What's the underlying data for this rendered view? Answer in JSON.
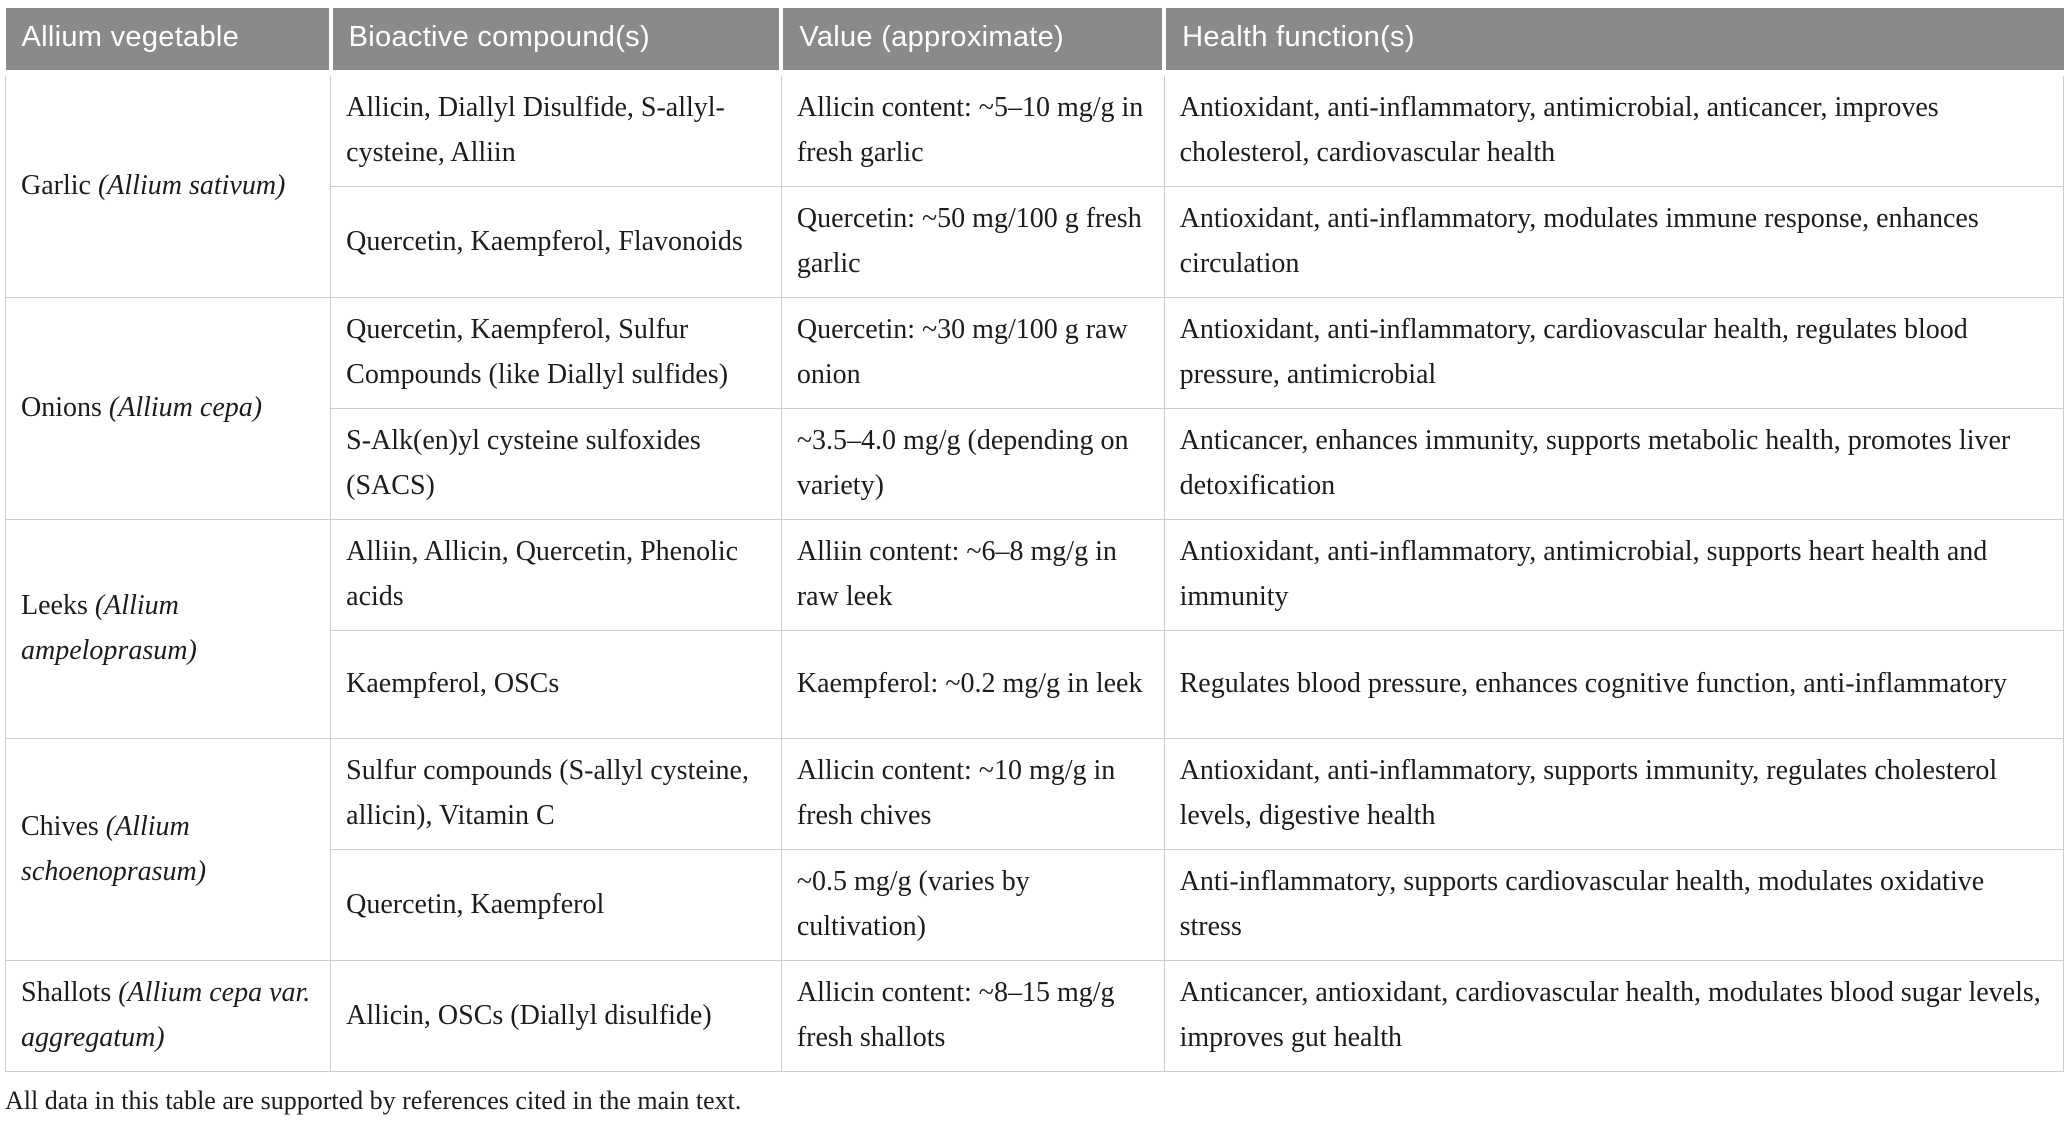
{
  "table": {
    "columns": [
      "Allium vegetable",
      "Bioactive compound(s)",
      "Value (approximate)",
      "Health function(s)"
    ],
    "groups": [
      {
        "vegetable": {
          "name": "Garlic",
          "species": "(Allium sativum)"
        },
        "rows": [
          {
            "compounds": "Allicin, Diallyl Disulfide, S-allyl-cysteine, Alliin",
            "value": "Allicin content: ~5–10 mg/g in fresh garlic",
            "functions": "Antioxidant, anti-inflammatory, antimicrobial, anticancer, improves cholesterol, cardiovascular health"
          },
          {
            "compounds": "Quercetin, Kaempferol, Flavonoids",
            "value": "Quercetin: ~50 mg/100 g fresh garlic",
            "functions": "Antioxidant, anti-inflammatory, modulates immune response, enhances circulation"
          }
        ]
      },
      {
        "vegetable": {
          "name": "Onions",
          "species": "(Allium cepa)"
        },
        "rows": [
          {
            "compounds": "Quercetin, Kaempferol, Sulfur Compounds (like Diallyl sulfides)",
            "value": "Quercetin: ~30 mg/100 g raw onion",
            "functions": "Antioxidant, anti-inflammatory, cardiovascular health, regulates blood pressure, antimicrobial"
          },
          {
            "compounds": "S-Alk(en)yl cysteine sulfoxides (SACS)",
            "value": "~3.5–4.0 mg/g (depending on variety)",
            "functions": "Anticancer, enhances immunity, supports metabolic health, promotes liver detoxification"
          }
        ]
      },
      {
        "vegetable": {
          "name": "Leeks",
          "species": "(Allium ampeloprasum)"
        },
        "rows": [
          {
            "compounds": "Alliin, Allicin, Quercetin, Phenolic acids",
            "value": "Alliin content: ~6–8 mg/g in raw leek",
            "functions": "Antioxidant, anti-inflammatory, antimicrobial, supports heart health and immunity"
          },
          {
            "compounds": "Kaempferol, OSCs",
            "value": "Kaempferol: ~0.2 mg/g in leek",
            "functions": "Regulates blood pressure, enhances cognitive function, anti-inflammatory"
          }
        ]
      },
      {
        "vegetable": {
          "name": "Chives",
          "species": "(Allium schoenoprasum)"
        },
        "rows": [
          {
            "compounds": "Sulfur compounds (S-allyl cysteine, allicin), Vitamin C",
            "value": "Allicin content: ~10 mg/g in fresh chives",
            "functions": "Antioxidant, anti-inflammatory, supports immunity, regulates cholesterol levels, digestive health"
          },
          {
            "compounds": "Quercetin, Kaempferol",
            "value": "~0.5 mg/g (varies by cultivation)",
            "functions": "Anti-inflammatory, supports cardiovascular health, modulates oxidative stress"
          }
        ]
      },
      {
        "vegetable": {
          "name": "Shallots",
          "species": "(Allium cepa var. aggregatum)"
        },
        "rows": [
          {
            "compounds": "Allicin, OSCs (Diallyl disulfide)",
            "value": "Allicin content: ~8–15 mg/g fresh shallots",
            "functions": "Anticancer, antioxidant, cardiovascular health, modulates blood sugar levels, improves gut health"
          }
        ]
      }
    ],
    "footnote": "All data in this table are supported by references cited in the main text."
  },
  "colors": {
    "header_bg": "#8a8a8a",
    "header_text": "#ffffff",
    "grid_line": "#cccccc",
    "body_text": "#1c1c1c"
  }
}
